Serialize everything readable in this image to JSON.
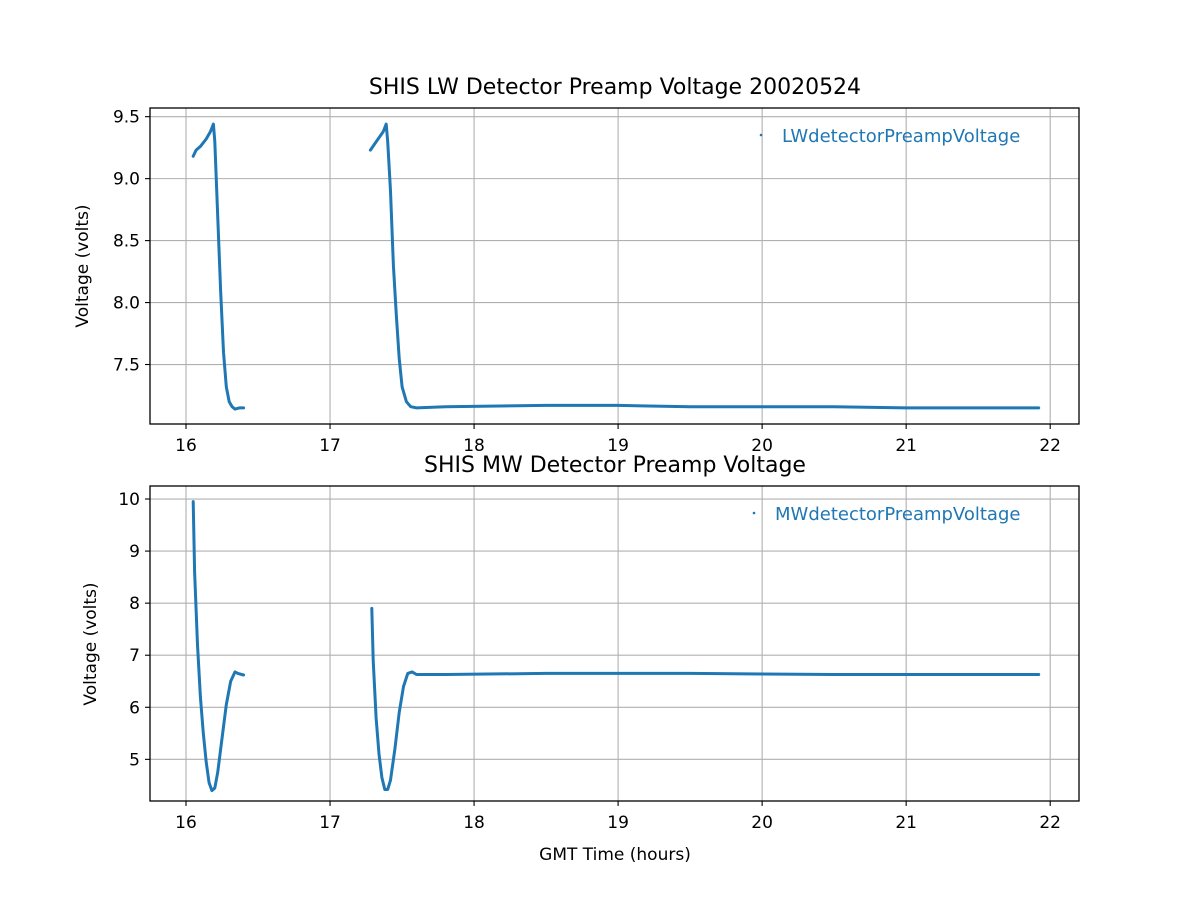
{
  "chart_data": [
    {
      "type": "scatter",
      "title": "SHIS LW Detector Preamp Voltage 20020524",
      "xlabel": "",
      "ylabel": "Voltage (volts)",
      "xlim": [
        15.75,
        22.2
      ],
      "ylim": [
        7.02,
        9.57
      ],
      "xticks": [
        16,
        17,
        18,
        19,
        20,
        21,
        22
      ],
      "yticks": [
        7.5,
        8.0,
        8.5,
        9.0,
        9.5
      ],
      "yticklabels": [
        "7.5",
        "8.0",
        "8.5",
        "9.0",
        "9.5"
      ],
      "grid": true,
      "legend_position": "top-right",
      "series": [
        {
          "name": "LWdetectorPreampVoltage",
          "color": "#1f77b4",
          "segments": [
            {
              "x": [
                16.05,
                16.07,
                16.1,
                16.14,
                16.17,
                16.19,
                16.2,
                16.22,
                16.24,
                16.26,
                16.28,
                16.3,
                16.32,
                16.34,
                16.37,
                16.4
              ],
              "y": [
                9.18,
                9.23,
                9.26,
                9.32,
                9.38,
                9.44,
                9.3,
                8.7,
                8.1,
                7.6,
                7.32,
                7.2,
                7.16,
                7.14,
                7.15,
                7.15
              ]
            },
            {
              "x": [
                17.28,
                17.31,
                17.34,
                17.37,
                17.39,
                17.4,
                17.42,
                17.44,
                17.46,
                17.48,
                17.5,
                17.53,
                17.56,
                17.6,
                17.8,
                18.5,
                19.0,
                19.5,
                20.0,
                20.5,
                21.0,
                21.5,
                21.92
              ],
              "y": [
                9.23,
                9.28,
                9.33,
                9.38,
                9.44,
                9.3,
                8.9,
                8.3,
                7.9,
                7.55,
                7.32,
                7.2,
                7.16,
                7.15,
                7.16,
                7.17,
                7.17,
                7.16,
                7.16,
                7.16,
                7.15,
                7.15,
                7.15
              ]
            }
          ]
        }
      ]
    },
    {
      "type": "scatter",
      "title": "SHIS MW Detector Preamp Voltage",
      "xlabel": "GMT Time (hours)",
      "ylabel": "Voltage (volts)",
      "xlim": [
        15.75,
        22.2
      ],
      "ylim": [
        4.2,
        10.25
      ],
      "xticks": [
        16,
        17,
        18,
        19,
        20,
        21,
        22
      ],
      "yticks": [
        5,
        6,
        7,
        8,
        9,
        10
      ],
      "yticklabels": [
        "5",
        "6",
        "7",
        "8",
        "9",
        "10"
      ],
      "grid": true,
      "legend_position": "top-right",
      "series": [
        {
          "name": "MWdetectorPreampVoltage",
          "color": "#1f77b4",
          "segments": [
            {
              "x": [
                16.05,
                16.06,
                16.08,
                16.1,
                16.12,
                16.14,
                16.16,
                16.18,
                16.2,
                16.22,
                16.25,
                16.28,
                16.31,
                16.34,
                16.36,
                16.4
              ],
              "y": [
                9.95,
                8.6,
                7.2,
                6.2,
                5.5,
                4.95,
                4.55,
                4.4,
                4.45,
                4.75,
                5.4,
                6.05,
                6.5,
                6.68,
                6.65,
                6.62
              ]
            },
            {
              "x": [
                17.29,
                17.3,
                17.32,
                17.34,
                17.36,
                17.38,
                17.4,
                17.42,
                17.45,
                17.48,
                17.51,
                17.54,
                17.57,
                17.6,
                17.8,
                18.5,
                19.0,
                19.5,
                20.0,
                20.5,
                21.0,
                21.5,
                21.92
              ],
              "y": [
                7.9,
                6.9,
                5.8,
                5.1,
                4.65,
                4.42,
                4.42,
                4.6,
                5.2,
                5.9,
                6.4,
                6.65,
                6.68,
                6.63,
                6.63,
                6.65,
                6.65,
                6.65,
                6.64,
                6.63,
                6.63,
                6.63,
                6.63
              ]
            }
          ]
        }
      ]
    }
  ]
}
